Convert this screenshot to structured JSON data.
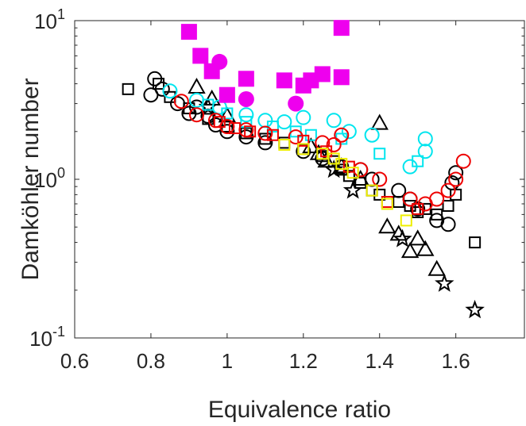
{
  "chart_data": {
    "type": "scatter",
    "title": "",
    "xlabel": "Equivalence ratio",
    "ylabel": "Damköhler number",
    "xlim": [
      0.6,
      1.78
    ],
    "ylim": [
      0.1,
      10
    ],
    "yscale": "log",
    "grid": false,
    "x_ticks": [
      "0.6",
      "0.8",
      "1",
      "1.2",
      "1.4",
      "1.6"
    ],
    "y_ticks": [
      {
        "base": "10",
        "exp": "-1"
      },
      {
        "base": "10",
        "exp": "0"
      },
      {
        "base": "10",
        "exp": "1"
      }
    ],
    "series": [
      {
        "marker": "square",
        "color": "#000000",
        "filled": false,
        "points": [
          [
            0.74,
            3.7
          ],
          [
            0.82,
            4.0
          ],
          [
            0.85,
            3.3
          ],
          [
            0.9,
            2.8
          ],
          [
            0.95,
            2.4
          ],
          [
            1.0,
            2.15
          ],
          [
            1.05,
            1.95
          ],
          [
            1.1,
            1.8
          ],
          [
            1.15,
            1.7
          ],
          [
            1.2,
            1.55
          ],
          [
            1.25,
            1.4
          ],
          [
            1.28,
            1.3
          ],
          [
            1.3,
            1.15
          ],
          [
            1.32,
            1.05
          ],
          [
            1.35,
            0.95
          ],
          [
            1.38,
            0.85
          ],
          [
            1.4,
            0.8
          ],
          [
            1.45,
            0.72
          ],
          [
            1.48,
            0.68
          ],
          [
            1.5,
            0.62
          ],
          [
            1.52,
            0.65
          ],
          [
            1.55,
            0.6
          ],
          [
            1.58,
            0.68
          ],
          [
            1.6,
            0.8
          ],
          [
            1.65,
            0.4
          ]
        ]
      },
      {
        "marker": "circle",
        "color": "#000000",
        "filled": false,
        "points": [
          [
            0.8,
            3.4
          ],
          [
            0.81,
            4.3
          ],
          [
            0.83,
            3.7
          ],
          [
            0.87,
            3.0
          ],
          [
            0.9,
            2.6
          ],
          [
            0.92,
            2.85
          ],
          [
            0.95,
            2.5
          ],
          [
            0.97,
            2.2
          ],
          [
            1.0,
            2.0
          ],
          [
            1.05,
            1.85
          ],
          [
            1.1,
            1.7
          ],
          [
            1.2,
            1.5
          ],
          [
            1.25,
            1.35
          ],
          [
            1.3,
            1.2
          ],
          [
            1.35,
            1.15
          ],
          [
            1.38,
            1.0
          ],
          [
            1.45,
            0.85
          ],
          [
            1.48,
            0.75
          ],
          [
            1.5,
            0.65
          ],
          [
            1.55,
            0.55
          ],
          [
            1.58,
            0.52
          ],
          [
            1.59,
            0.95
          ],
          [
            1.6,
            1.1
          ]
        ]
      },
      {
        "marker": "triangle",
        "color": "#000000",
        "filled": false,
        "points": [
          [
            0.92,
            3.8
          ],
          [
            0.96,
            3.2
          ],
          [
            1.0,
            2.5
          ],
          [
            1.22,
            1.6
          ],
          [
            1.24,
            1.45
          ],
          [
            1.26,
            1.3
          ],
          [
            1.3,
            1.2
          ],
          [
            1.35,
            1.0
          ],
          [
            1.4,
            2.25
          ],
          [
            1.42,
            0.5
          ],
          [
            1.45,
            0.45
          ],
          [
            1.48,
            0.35
          ],
          [
            1.5,
            0.42
          ],
          [
            1.52,
            0.36
          ],
          [
            1.55,
            0.27
          ]
        ]
      },
      {
        "marker": "star",
        "color": "#000000",
        "filled": false,
        "points": [
          [
            0.95,
            2.85
          ],
          [
            1.28,
            1.15
          ],
          [
            1.33,
            0.85
          ],
          [
            1.46,
            0.42
          ],
          [
            1.57,
            0.22
          ],
          [
            1.65,
            0.15
          ]
        ]
      },
      {
        "marker": "circle",
        "color": "#00e5ee",
        "filled": false,
        "points": [
          [
            0.85,
            3.6
          ],
          [
            0.92,
            3.15
          ],
          [
            0.98,
            2.85
          ],
          [
            1.05,
            2.55
          ],
          [
            1.1,
            2.35
          ],
          [
            1.15,
            2.3
          ],
          [
            1.2,
            2.45
          ],
          [
            1.28,
            2.35
          ],
          [
            1.32,
            2.0
          ],
          [
            1.38,
            1.9
          ],
          [
            1.48,
            1.2
          ],
          [
            1.52,
            1.5
          ],
          [
            1.52,
            1.8
          ]
        ]
      },
      {
        "marker": "square",
        "color": "#00e5ee",
        "filled": false,
        "points": [
          [
            0.95,
            2.95
          ],
          [
            1.0,
            2.6
          ],
          [
            1.05,
            2.3
          ],
          [
            1.12,
            2.15
          ],
          [
            1.18,
            2.0
          ],
          [
            1.22,
            1.9
          ],
          [
            1.3,
            1.8
          ],
          [
            1.4,
            1.45
          ],
          [
            1.5,
            1.3
          ]
        ]
      },
      {
        "marker": "circle",
        "color": "#ee0000",
        "filled": false,
        "points": [
          [
            0.88,
            3.1
          ],
          [
            0.92,
            2.55
          ],
          [
            0.97,
            2.35
          ],
          [
            1.0,
            2.15
          ],
          [
            1.05,
            2.05
          ],
          [
            1.1,
            1.95
          ],
          [
            1.18,
            1.85
          ],
          [
            1.25,
            1.7
          ],
          [
            1.28,
            1.65
          ],
          [
            1.3,
            1.9
          ],
          [
            1.35,
            1.15
          ],
          [
            1.4,
            1.0
          ],
          [
            1.48,
            0.75
          ],
          [
            1.52,
            0.7
          ],
          [
            1.55,
            0.75
          ],
          [
            1.58,
            0.85
          ],
          [
            1.6,
            1.0
          ],
          [
            1.62,
            1.3
          ]
        ]
      },
      {
        "marker": "square",
        "color": "#ee0000",
        "filled": false,
        "points": [
          [
            0.98,
            2.3
          ],
          [
            1.02,
            2.1
          ],
          [
            1.06,
            2.0
          ],
          [
            1.12,
            1.9
          ],
          [
            1.2,
            1.75
          ],
          [
            1.26,
            1.5
          ],
          [
            1.32,
            1.2
          ],
          [
            1.42,
            0.72
          ],
          [
            1.5,
            0.65
          ]
        ]
      },
      {
        "marker": "square",
        "color": "#eeee00",
        "filled": false,
        "points": [
          [
            1.15,
            1.65
          ],
          [
            1.2,
            1.55
          ],
          [
            1.25,
            1.45
          ],
          [
            1.28,
            1.35
          ],
          [
            1.3,
            1.25
          ],
          [
            1.33,
            1.1
          ],
          [
            1.38,
            0.85
          ],
          [
            1.42,
            0.7
          ],
          [
            1.47,
            0.55
          ]
        ]
      },
      {
        "marker": "square",
        "color": "#ee00ee",
        "filled": true,
        "points": [
          [
            0.9,
            8.5
          ],
          [
            0.93,
            6.0
          ],
          [
            0.96,
            4.8
          ],
          [
            1.0,
            3.4
          ],
          [
            1.05,
            4.3
          ],
          [
            1.15,
            4.2
          ],
          [
            1.2,
            3.9
          ],
          [
            1.22,
            4.2
          ],
          [
            1.25,
            4.6
          ],
          [
            1.3,
            4.4
          ],
          [
            1.3,
            9.0
          ]
        ]
      },
      {
        "marker": "circle",
        "color": "#ee00ee",
        "filled": true,
        "points": [
          [
            0.98,
            5.5
          ],
          [
            1.05,
            3.2
          ],
          [
            1.18,
            3.0
          ]
        ]
      }
    ]
  }
}
